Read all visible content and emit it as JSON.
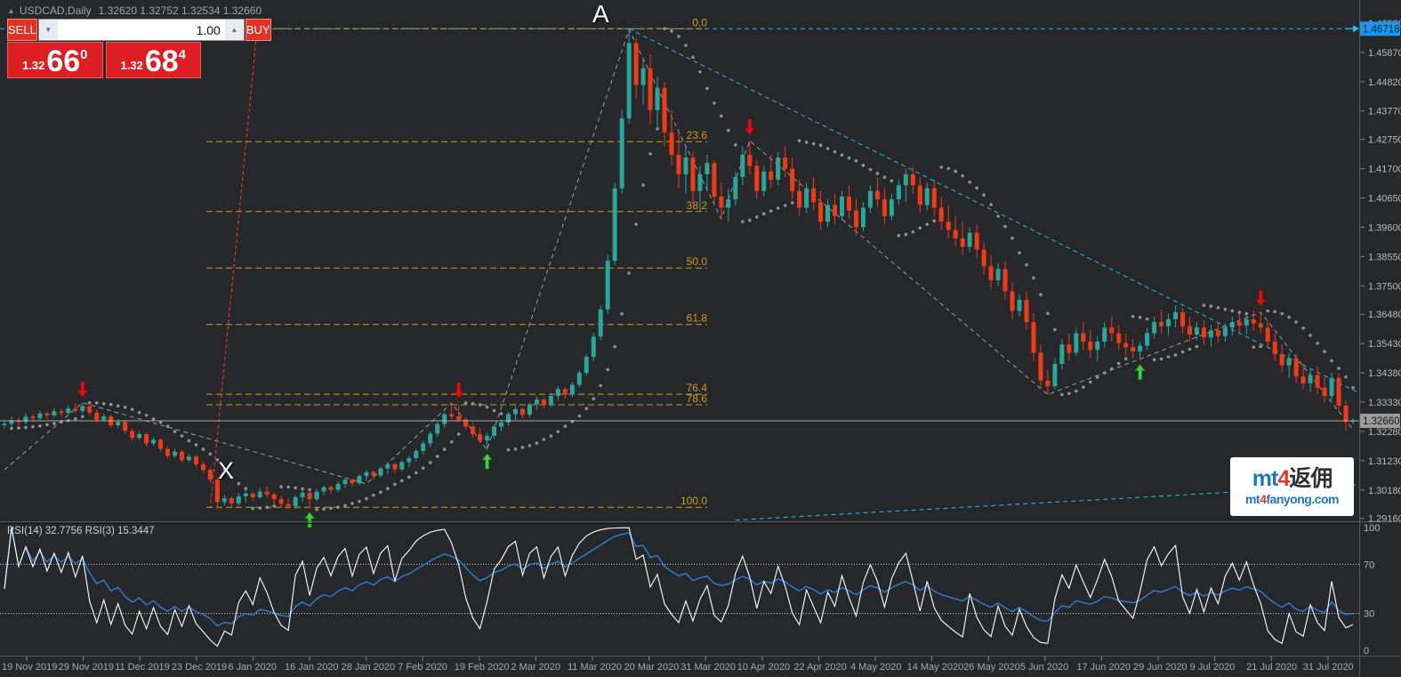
{
  "window": {
    "symbol_period": "USDCAD,Daily",
    "ohlc_values": "1.32620 1.32752 1.32534 1.32660",
    "collapse_icon": "▲"
  },
  "order_panel": {
    "sell_label": "SELL",
    "buy_label": "BUY",
    "volume": "1.00",
    "spin_down": "▼",
    "spin_up": "▲",
    "sell_price": {
      "prefix": "1.32",
      "big": "66",
      "sup": "0"
    },
    "buy_price": {
      "prefix": "1.32",
      "big": "68",
      "sup": "4"
    }
  },
  "annotations": {
    "point_a": "A",
    "point_x": "X"
  },
  "rsi": {
    "label": "RSI(14) 32.7756  RSI(3) 15.3447",
    "fast_period": 3,
    "slow_period": 14,
    "levels": [
      70,
      30
    ],
    "scale_labels": [
      "100",
      "70",
      "30",
      "0"
    ]
  },
  "price_scale": {
    "ticks": [
      "1.46920",
      "1.45870",
      "1.44820",
      "1.43770",
      "1.42750",
      "1.41700",
      "1.40650",
      "1.39600",
      "1.38550",
      "1.37500",
      "1.36480",
      "1.35430",
      "1.34380",
      "1.33330",
      "1.32280",
      "1.31230",
      "1.30180",
      "1.29160"
    ],
    "line_marker_label": "1.46718",
    "bid_marker_label": "1.32660"
  },
  "time_axis": {
    "labels": [
      "19 Nov 2019",
      "29 Nov 2019",
      "11 Dec 2019",
      "23 Dec 2019",
      "6 Jan 2020",
      "16 Jan 2020",
      "28 Jan 2020",
      "7 Feb 2020",
      "19 Feb 2020",
      "2 Mar 2020",
      "11 Mar 2020",
      "20 Mar 2020",
      "31 Mar 2020",
      "10 Apr 2020",
      "22 Apr 2020",
      "4 May 2020",
      "14 May 2020",
      "26 May 2020",
      "5 Jun 2020",
      "17 Jun 2020",
      "29 Jun 2020",
      "9 Jul 2020",
      "21 Jul 2020",
      "31 Jul 2020"
    ]
  },
  "watermark": {
    "l1_prefix": "mt",
    "l1_num": "4",
    "l1_cn": "返佣",
    "l2_prefix": "mt",
    "l2_num": "4",
    "l2_suffix": "fanyong.com"
  },
  "chart_data": {
    "type": "candlestick",
    "symbol": "USDCAD",
    "timeframe": "Daily",
    "y_axis": {
      "max": 1.47747,
      "min": 1.29088
    },
    "colors": {
      "bull": "#2aa79b",
      "bear": "#f23b14",
      "fib": "#cf9a1f",
      "trendline": "#25c0ef",
      "marker_line": "#ff3b30",
      "sar": "#8f9193",
      "zigzag": "#9aa0a4",
      "rsi_fast": "#ffffff",
      "rsi_slow": "#2f7ed8",
      "bid_line": "#cfcfcf",
      "ask_box": "#1a97e8",
      "bid_box": "#9c9c9c"
    },
    "candles": [
      [
        1.325,
        1.3268,
        1.3238,
        1.3255
      ],
      [
        1.3255,
        1.328,
        1.3245,
        1.3268
      ],
      [
        1.3268,
        1.3278,
        1.325,
        1.3262
      ],
      [
        1.3262,
        1.3292,
        1.3255,
        1.3281
      ],
      [
        1.3281,
        1.329,
        1.3262,
        1.3275
      ],
      [
        1.3275,
        1.3303,
        1.3268,
        1.3292
      ],
      [
        1.3292,
        1.33,
        1.3272,
        1.3285
      ],
      [
        1.3285,
        1.3312,
        1.3278,
        1.33
      ],
      [
        1.33,
        1.331,
        1.3282,
        1.3294
      ],
      [
        1.3294,
        1.3322,
        1.3288,
        1.331
      ],
      [
        1.331,
        1.333,
        1.3295,
        1.3302
      ],
      [
        1.3302,
        1.3331,
        1.3292,
        1.3318
      ],
      [
        1.3318,
        1.3325,
        1.3285,
        1.3295
      ],
      [
        1.3295,
        1.3305,
        1.3258,
        1.327
      ],
      [
        1.327,
        1.3292,
        1.3262,
        1.3282
      ],
      [
        1.3282,
        1.3288,
        1.324,
        1.325
      ],
      [
        1.325,
        1.3272,
        1.3242,
        1.3262
      ],
      [
        1.3262,
        1.3268,
        1.322,
        1.323
      ],
      [
        1.323,
        1.324,
        1.3195,
        1.3205
      ],
      [
        1.3205,
        1.3228,
        1.3198,
        1.3218
      ],
      [
        1.3218,
        1.3224,
        1.3175,
        1.3185
      ],
      [
        1.3185,
        1.3208,
        1.3178,
        1.3198
      ],
      [
        1.3198,
        1.3204,
        1.3155,
        1.3165
      ],
      [
        1.3165,
        1.3175,
        1.313,
        1.314
      ],
      [
        1.314,
        1.3165,
        1.3132,
        1.3155
      ],
      [
        1.3155,
        1.316,
        1.3115,
        1.3125
      ],
      [
        1.3125,
        1.3148,
        1.3118,
        1.3138
      ],
      [
        1.3138,
        1.3144,
        1.31,
        1.311
      ],
      [
        1.311,
        1.312,
        1.3078,
        1.309
      ],
      [
        1.309,
        1.3098,
        1.3042,
        1.3055
      ],
      [
        1.3055,
        1.3062,
        1.2952,
        1.2975
      ],
      [
        1.2975,
        1.3,
        1.2962,
        1.2988
      ],
      [
        1.2988,
        1.2996,
        1.2958,
        1.297
      ],
      [
        1.297,
        1.3008,
        1.2962,
        1.2995
      ],
      [
        1.2995,
        1.3018,
        1.2972,
        1.3005
      ],
      [
        1.3005,
        1.3012,
        1.2978,
        1.2992
      ],
      [
        1.2992,
        1.3025,
        1.2985,
        1.3012
      ],
      [
        1.3012,
        1.303,
        1.299,
        1.3002
      ],
      [
        1.3002,
        1.301,
        1.2968,
        1.2985
      ],
      [
        1.2985,
        1.2995,
        1.2955,
        1.2968
      ],
      [
        1.2968,
        1.2988,
        1.2948,
        1.296
      ],
      [
        1.296,
        1.3,
        1.295,
        1.2992
      ],
      [
        1.2992,
        1.3015,
        1.2975,
        1.3008
      ],
      [
        1.3008,
        1.3012,
        1.2952,
        1.2985
      ],
      [
        1.2985,
        1.3022,
        1.2978,
        1.3012
      ],
      [
        1.3012,
        1.3035,
        1.3,
        1.3028
      ],
      [
        1.3028,
        1.3035,
        1.3005,
        1.3018
      ],
      [
        1.3018,
        1.3048,
        1.301,
        1.304
      ],
      [
        1.304,
        1.3062,
        1.3025,
        1.3055
      ],
      [
        1.3055,
        1.306,
        1.3028,
        1.3042
      ],
      [
        1.3042,
        1.3075,
        1.3035,
        1.3068
      ],
      [
        1.3068,
        1.309,
        1.305,
        1.3082
      ],
      [
        1.3082,
        1.3088,
        1.3055,
        1.307
      ],
      [
        1.307,
        1.3102,
        1.3062,
        1.3095
      ],
      [
        1.3095,
        1.3118,
        1.3075,
        1.311
      ],
      [
        1.311,
        1.3115,
        1.308,
        1.3092
      ],
      [
        1.3092,
        1.3125,
        1.3085,
        1.3118
      ],
      [
        1.3118,
        1.314,
        1.31,
        1.3132
      ],
      [
        1.3132,
        1.3165,
        1.312,
        1.3158
      ],
      [
        1.3158,
        1.3195,
        1.3145,
        1.3185
      ],
      [
        1.3185,
        1.3228,
        1.3172,
        1.322
      ],
      [
        1.322,
        1.3262,
        1.3208,
        1.3255
      ],
      [
        1.3255,
        1.3298,
        1.324,
        1.329
      ],
      [
        1.329,
        1.333,
        1.327,
        1.3282
      ],
      [
        1.3282,
        1.3325,
        1.3262,
        1.327
      ],
      [
        1.327,
        1.3278,
        1.3235,
        1.3245
      ],
      [
        1.3245,
        1.3255,
        1.3205,
        1.3218
      ],
      [
        1.3218,
        1.324,
        1.3185,
        1.3195
      ],
      [
        1.3195,
        1.3222,
        1.3162,
        1.3212
      ],
      [
        1.3212,
        1.3252,
        1.32,
        1.3245
      ],
      [
        1.3245,
        1.327,
        1.3228,
        1.326
      ],
      [
        1.326,
        1.3298,
        1.3248,
        1.329
      ],
      [
        1.329,
        1.3318,
        1.327,
        1.3308
      ],
      [
        1.3308,
        1.3315,
        1.3275,
        1.3288
      ],
      [
        1.3288,
        1.3332,
        1.328,
        1.3325
      ],
      [
        1.3325,
        1.3352,
        1.3305,
        1.3342
      ],
      [
        1.3342,
        1.3348,
        1.331,
        1.3322
      ],
      [
        1.3322,
        1.3365,
        1.3315,
        1.3355
      ],
      [
        1.3355,
        1.339,
        1.3338,
        1.338
      ],
      [
        1.338,
        1.3388,
        1.3345,
        1.336
      ],
      [
        1.336,
        1.3405,
        1.3352,
        1.3395
      ],
      [
        1.3395,
        1.3448,
        1.3385,
        1.3438
      ],
      [
        1.3438,
        1.3505,
        1.3428,
        1.3495
      ],
      [
        1.3495,
        1.358,
        1.3482,
        1.3568
      ],
      [
        1.3568,
        1.368,
        1.3555,
        1.3665
      ],
      [
        1.3665,
        1.386,
        1.365,
        1.384
      ],
      [
        1.384,
        1.412,
        1.3825,
        1.41
      ],
      [
        1.41,
        1.438,
        1.408,
        1.435
      ],
      [
        1.435,
        1.4672,
        1.433,
        1.462
      ],
      [
        1.462,
        1.464,
        1.442,
        1.447
      ],
      [
        1.447,
        1.456,
        1.44,
        1.453
      ],
      [
        1.453,
        1.458,
        1.433,
        1.438
      ],
      [
        1.438,
        1.45,
        1.432,
        1.446
      ],
      [
        1.446,
        1.448,
        1.425,
        1.43
      ],
      [
        1.43,
        1.438,
        1.418,
        1.422
      ],
      [
        1.422,
        1.431,
        1.41,
        1.415
      ],
      [
        1.415,
        1.425,
        1.408,
        1.421
      ],
      [
        1.421,
        1.423,
        1.405,
        1.409
      ],
      [
        1.409,
        1.418,
        1.402,
        1.415
      ],
      [
        1.415,
        1.422,
        1.409,
        1.419
      ],
      [
        1.419,
        1.42,
        1.404,
        1.407
      ],
      [
        1.407,
        1.412,
        1.399,
        1.403
      ],
      [
        1.403,
        1.41,
        1.398,
        1.406
      ],
      [
        1.406,
        1.416,
        1.404,
        1.414
      ],
      [
        1.414,
        1.425,
        1.411,
        1.422
      ],
      [
        1.422,
        1.427,
        1.415,
        1.418
      ],
      [
        1.418,
        1.42,
        1.406,
        1.409
      ],
      [
        1.409,
        1.418,
        1.407,
        1.416
      ],
      [
        1.416,
        1.422,
        1.41,
        1.413
      ],
      [
        1.413,
        1.423,
        1.411,
        1.421
      ],
      [
        1.421,
        1.425,
        1.414,
        1.417
      ],
      [
        1.417,
        1.421,
        1.406,
        1.409
      ],
      [
        1.409,
        1.413,
        1.4,
        1.403
      ],
      [
        1.403,
        1.412,
        1.401,
        1.41
      ],
      [
        1.41,
        1.414,
        1.402,
        1.405
      ],
      [
        1.405,
        1.409,
        1.395,
        1.398
      ],
      [
        1.398,
        1.406,
        1.396,
        1.404
      ],
      [
        1.404,
        1.408,
        1.397,
        1.4
      ],
      [
        1.4,
        1.409,
        1.3985,
        1.407
      ],
      [
        1.407,
        1.411,
        1.399,
        1.402
      ],
      [
        1.402,
        1.406,
        1.393,
        1.396
      ],
      [
        1.396,
        1.405,
        1.3945,
        1.403
      ],
      [
        1.403,
        1.411,
        1.401,
        1.409
      ],
      [
        1.409,
        1.414,
        1.403,
        1.406
      ],
      [
        1.406,
        1.41,
        1.397,
        1.4
      ],
      [
        1.4,
        1.408,
        1.3985,
        1.406
      ],
      [
        1.406,
        1.413,
        1.404,
        1.411
      ],
      [
        1.411,
        1.417,
        1.405,
        1.415
      ],
      [
        1.415,
        1.4175,
        1.408,
        1.411
      ],
      [
        1.411,
        1.414,
        1.401,
        1.404
      ],
      [
        1.404,
        1.412,
        1.402,
        1.41
      ],
      [
        1.41,
        1.413,
        1.4,
        1.403
      ],
      [
        1.403,
        1.407,
        1.395,
        1.398
      ],
      [
        1.398,
        1.404,
        1.392,
        1.395
      ],
      [
        1.395,
        1.4,
        1.389,
        1.392
      ],
      [
        1.392,
        1.398,
        1.386,
        1.389
      ],
      [
        1.389,
        1.396,
        1.387,
        1.394
      ],
      [
        1.394,
        1.397,
        1.385,
        1.388
      ],
      [
        1.388,
        1.391,
        1.379,
        1.382
      ],
      [
        1.382,
        1.386,
        1.374,
        1.377
      ],
      [
        1.377,
        1.383,
        1.375,
        1.381
      ],
      [
        1.381,
        1.384,
        1.37,
        1.373
      ],
      [
        1.373,
        1.376,
        1.363,
        1.366
      ],
      [
        1.366,
        1.372,
        1.364,
        1.37
      ],
      [
        1.37,
        1.373,
        1.359,
        1.362
      ],
      [
        1.362,
        1.365,
        1.348,
        1.351
      ],
      [
        1.351,
        1.354,
        1.338,
        1.341
      ],
      [
        1.341,
        1.345,
        1.336,
        1.339
      ],
      [
        1.339,
        1.349,
        1.338,
        1.347
      ],
      [
        1.347,
        1.356,
        1.345,
        1.354
      ],
      [
        1.354,
        1.358,
        1.348,
        1.351
      ],
      [
        1.351,
        1.36,
        1.35,
        1.358
      ],
      [
        1.358,
        1.362,
        1.352,
        1.355
      ],
      [
        1.355,
        1.359,
        1.349,
        1.352
      ],
      [
        1.352,
        1.357,
        1.348,
        1.355
      ],
      [
        1.355,
        1.362,
        1.353,
        1.36
      ],
      [
        1.36,
        1.364,
        1.355,
        1.358
      ],
      [
        1.358,
        1.361,
        1.352,
        1.3545
      ],
      [
        1.3545,
        1.358,
        1.35,
        1.353
      ],
      [
        1.353,
        1.356,
        1.349,
        1.3515
      ],
      [
        1.3515,
        1.355,
        1.3485,
        1.3535
      ],
      [
        1.3535,
        1.36,
        1.352,
        1.358
      ],
      [
        1.358,
        1.364,
        1.356,
        1.362
      ],
      [
        1.362,
        1.3665,
        1.358,
        1.3605
      ],
      [
        1.3605,
        1.365,
        1.357,
        1.363
      ],
      [
        1.363,
        1.368,
        1.36,
        1.3655
      ],
      [
        1.3655,
        1.367,
        1.358,
        1.3605
      ],
      [
        1.3605,
        1.364,
        1.355,
        1.3575
      ],
      [
        1.3575,
        1.362,
        1.3555,
        1.36
      ],
      [
        1.36,
        1.3625,
        1.354,
        1.3565
      ],
      [
        1.3565,
        1.361,
        1.353,
        1.359
      ],
      [
        1.359,
        1.362,
        1.3545,
        1.357
      ],
      [
        1.357,
        1.3615,
        1.355,
        1.36
      ],
      [
        1.36,
        1.364,
        1.357,
        1.362
      ],
      [
        1.362,
        1.365,
        1.358,
        1.3608
      ],
      [
        1.3608,
        1.3645,
        1.3575,
        1.363
      ],
      [
        1.363,
        1.366,
        1.359,
        1.3615
      ],
      [
        1.3615,
        1.3655,
        1.358,
        1.36
      ],
      [
        1.36,
        1.362,
        1.353,
        1.355
      ],
      [
        1.355,
        1.358,
        1.348,
        1.3505
      ],
      [
        1.3505,
        1.354,
        1.344,
        1.3465
      ],
      [
        1.3465,
        1.351,
        1.342,
        1.349
      ],
      [
        1.349,
        1.3505,
        1.34,
        1.3425
      ],
      [
        1.3425,
        1.347,
        1.338,
        1.34
      ],
      [
        1.34,
        1.345,
        1.337,
        1.343
      ],
      [
        1.343,
        1.346,
        1.336,
        1.3385
      ],
      [
        1.3385,
        1.342,
        1.333,
        1.3355
      ],
      [
        1.3355,
        1.344,
        1.334,
        1.342
      ],
      [
        1.342,
        1.3435,
        1.33,
        1.332
      ],
      [
        1.332,
        1.334,
        1.323,
        1.3262
      ],
      [
        1.3262,
        1.32752,
        1.32534,
        1.3266
      ]
    ],
    "fibonacci": {
      "levels": [
        {
          "pct": "0.0",
          "price": 1.46718
        },
        {
          "pct": "23.6",
          "price": 1.42668
        },
        {
          "pct": "38.2",
          "price": 1.40163
        },
        {
          "pct": "50.0",
          "price": 1.38139
        },
        {
          "pct": "61.8",
          "price": 1.36115
        },
        {
          "pct": "76.4",
          "price": 1.33612
        },
        {
          "pct": "78.6",
          "price": 1.33235
        },
        {
          "pct": "100.0",
          "price": 1.2956
        }
      ]
    },
    "zigzag": [
      [
        0,
        1.309
      ],
      [
        11,
        1.3331
      ],
      [
        51,
        1.304
      ],
      [
        63,
        1.333
      ],
      [
        68,
        1.3162
      ],
      [
        88,
        1.4668
      ],
      [
        101,
        1.399
      ],
      [
        105,
        1.427
      ],
      [
        147,
        1.336
      ],
      [
        177,
        1.3655
      ],
      [
        190,
        1.3235
      ]
    ],
    "objects": {
      "horizontal_line_price": 1.46718,
      "descending_trendline": {
        "from": [
          88,
          1.46718
        ],
        "to": [
          191,
          1.3364
        ]
      },
      "lower_trendline": {
        "from": [
          103,
          1.291
        ],
        "to": [
          191,
          1.3036
        ]
      },
      "vertical_marker_line": {
        "from": [
          35.7,
          1.4695
        ],
        "to": [
          29,
          1.2953
        ]
      }
    },
    "signals": [
      {
        "type": "sell",
        "bar": 11,
        "price": 1.3352
      },
      {
        "type": "sell",
        "bar": 64,
        "price": 1.3348
      },
      {
        "type": "buy",
        "bar": 43,
        "price": 1.2938
      },
      {
        "type": "buy",
        "bar": 68,
        "price": 1.3148
      },
      {
        "type": "sell",
        "bar": 105,
        "price": 1.4292
      },
      {
        "type": "buy",
        "bar": 160,
        "price": 1.3468
      },
      {
        "type": "sell",
        "bar": 177,
        "price": 1.3678
      }
    ],
    "bid_price": 1.3266
  }
}
